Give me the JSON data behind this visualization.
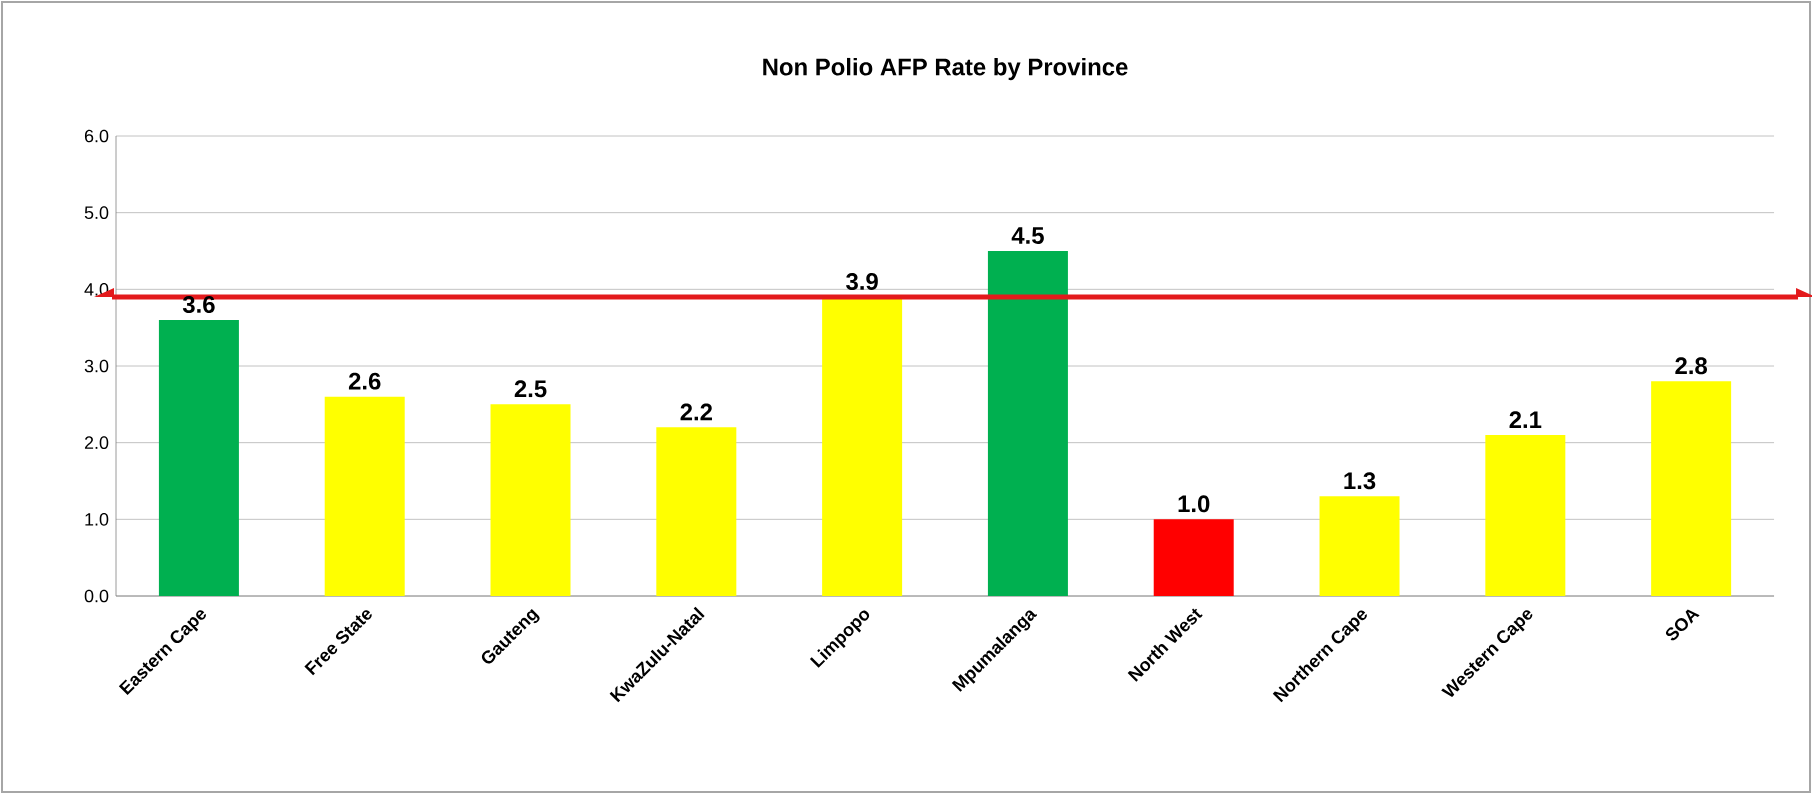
{
  "chart_data": {
    "type": "bar",
    "title": "Non Polio AFP Rate by Province",
    "categories": [
      "Eastern Cape",
      "Free State",
      "Gauteng",
      "KwaZulu-Natal",
      "Limpopo",
      "Mpumalanga",
      "North West",
      "Northern Cape",
      "Western Cape",
      "SOA"
    ],
    "values": [
      3.6,
      2.6,
      2.5,
      2.2,
      3.9,
      4.5,
      1.0,
      1.3,
      2.1,
      2.8
    ],
    "colors": [
      "#00b050",
      "#ffff00",
      "#ffff00",
      "#ffff00",
      "#ffff00",
      "#00b050",
      "#ff0000",
      "#ffff00",
      "#ffff00",
      "#ffff00"
    ],
    "ylim": [
      0,
      6
    ],
    "yticks": [
      {
        "value": 0,
        "label": "0.0"
      },
      {
        "value": 1,
        "label": "1.0"
      },
      {
        "value": 2,
        "label": "2.0"
      },
      {
        "value": 3,
        "label": "3.0"
      },
      {
        "value": 4,
        "label": "4.0"
      },
      {
        "value": 5,
        "label": "5.0"
      },
      {
        "value": 6,
        "label": "6.0"
      }
    ],
    "value_labels": [
      "3.6",
      "2.6",
      "2.5",
      "2.2",
      "3.9",
      "4.5",
      "1.0",
      "1.3",
      "2.1",
      "2.8"
    ],
    "grid": "y",
    "ref_lines": [
      {
        "axis": "y",
        "value": 3.9,
        "color": "#e31a1c"
      }
    ]
  }
}
